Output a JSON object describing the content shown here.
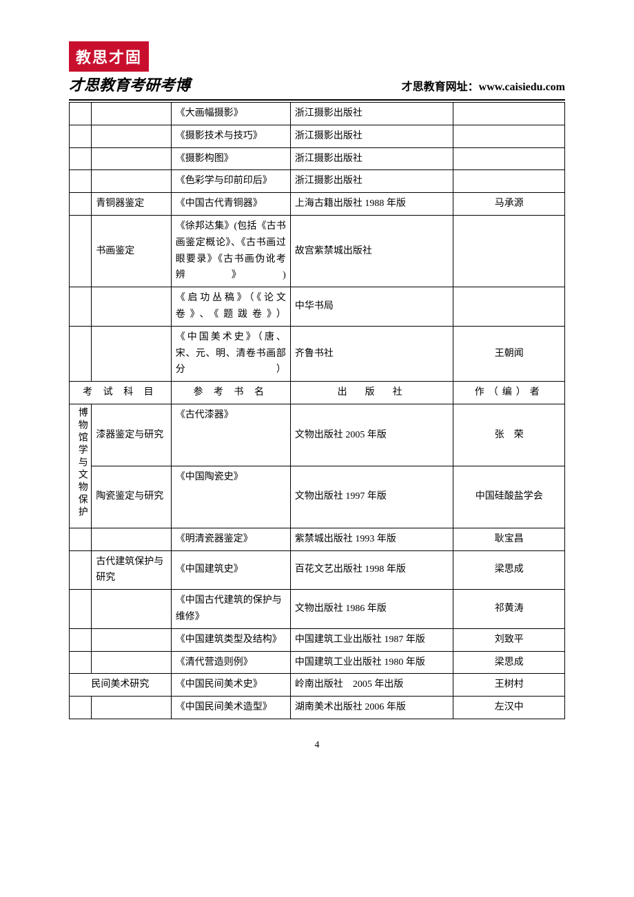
{
  "header": {
    "seal_text": "教思才固",
    "subtitle": "才思教育考研考博",
    "site_label": "才思教育网址：",
    "site_url": "www.caisiedu.com"
  },
  "table": {
    "header": {
      "subject": "考 试 科 目",
      "book": "参 考 书 名",
      "publisher": "出　版　社",
      "author": "作（编）者"
    },
    "vertical_label": "博物馆学与文物保护",
    "rows_top": [
      {
        "c0": "",
        "c1": "",
        "book": "《大画幅摄影》",
        "pub": "浙江摄影出版社",
        "auth": ""
      },
      {
        "c0": "",
        "c1": "",
        "book": "《摄影技术与技巧》",
        "pub": "浙江摄影出版社",
        "auth": ""
      },
      {
        "c0": "",
        "c1": "",
        "book": "《摄影构图》",
        "pub": "浙江摄影出版社",
        "auth": ""
      },
      {
        "c0": "",
        "c1": "",
        "book": "《色彩学与印前印后》",
        "pub": "浙江摄影出版社",
        "auth": ""
      },
      {
        "c0": "",
        "c1": "青铜器鉴定",
        "book": "《中国古代青铜器》",
        "pub": "上海古籍出版社 1988 年版",
        "auth": "马承源"
      },
      {
        "c0": "",
        "c1": "书画鉴定",
        "book": "《徐邦达集》(包括《古书画鉴定概论》、《古书画过眼要录》《古书画伪讹考辨》)",
        "pub": "故宫紫禁城出版社",
        "auth": ""
      },
      {
        "c0": "",
        "c1": "",
        "book": "《启功丛稿》（《论文卷》、《题跋卷》）",
        "pub": "中华书局",
        "auth": ""
      },
      {
        "c0": "",
        "c1": "",
        "book": "《中国美术史》（唐、宋、元、明、清卷书画部分）",
        "pub": "齐鲁书社",
        "auth": "王朝闻"
      }
    ],
    "rows_bottom": [
      {
        "c1": "漆器鉴定与研究",
        "book": "《古代漆器》",
        "pub": "文物出版社 2005 年版",
        "auth": "张　荣"
      },
      {
        "c1": "陶瓷鉴定与研究",
        "book": "《中国陶瓷史》",
        "pub": "文物出版社 1997 年版",
        "auth": "中国硅酸盐学会"
      },
      {
        "c0": "",
        "c1": "",
        "book": "《明清瓷器鉴定》",
        "pub": "紫禁城出版社 1993 年版",
        "auth": "耿宝昌"
      },
      {
        "c0": "",
        "c1": "古代建筑保护与研究",
        "book": "《中国建筑史》",
        "pub": "百花文艺出版社 1998 年版",
        "auth": "梁思成"
      },
      {
        "c0": "",
        "c1": "",
        "book": "《中国古代建筑的保护与维修》",
        "pub": "文物出版社 1986 年版",
        "auth": "祁黄涛"
      },
      {
        "c0": "",
        "c1": "",
        "book": "《中国建筑类型及结构》",
        "pub": "中国建筑工业出版社 1987 年版",
        "auth": "刘致平"
      },
      {
        "c0": "",
        "c1": "",
        "book": "《清代营造则例》",
        "pub": "中国建筑工业出版社 1980 年版",
        "auth": "梁思成"
      },
      {
        "c01": "民间美术研究",
        "book": "《中国民间美术史》",
        "pub": "岭南出版社　2005 年出版",
        "auth": "王树村"
      },
      {
        "c0": "",
        "c1": "",
        "book": "《中国民间美术造型》",
        "pub": "湖南美术出版社 2006 年版",
        "auth": "左汉中"
      }
    ]
  },
  "page_number": "4"
}
